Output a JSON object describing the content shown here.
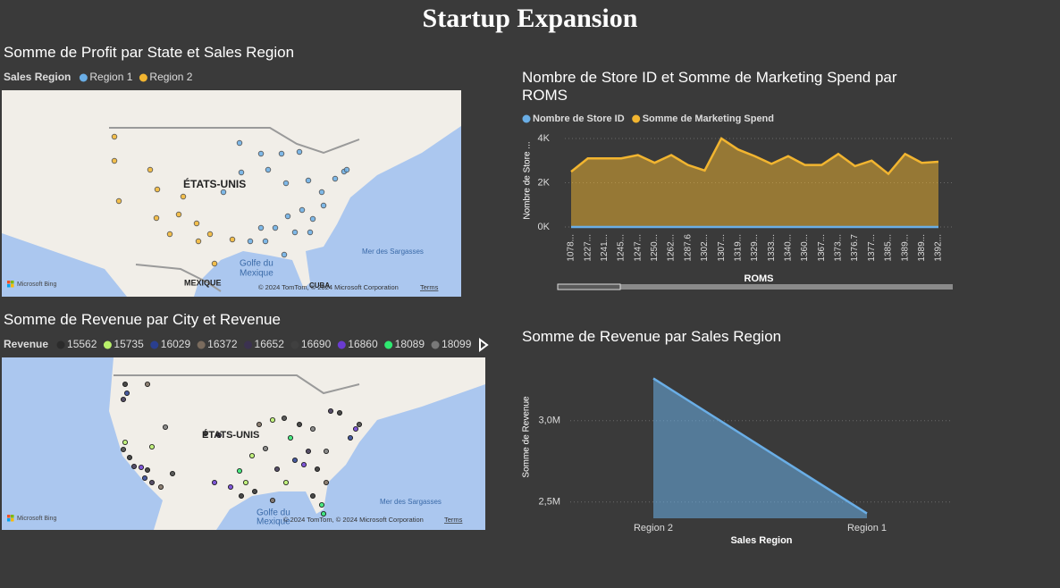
{
  "title": "Startup Expansion",
  "maps": [
    {
      "title": "Somme de Profit par State et Sales Region",
      "legend_title": "Sales Region",
      "legend": [
        {
          "name": "Region 1",
          "color": "#6aaee6"
        },
        {
          "name": "Region 2",
          "color": "#f2b530"
        }
      ],
      "labels": [
        "ÉTATS-UNIS",
        "MEXIQUE",
        "Golfe du",
        "Mexique",
        "Mer des Sargasses",
        "CUBA"
      ],
      "provider": "Microsoft Bing",
      "attribution": "© 2024 TomTom, © 2024 Microsoft Corporation",
      "terms": "Terms"
    },
    {
      "title": "Somme de Revenue par City et Revenue",
      "legend_title": "Revenue",
      "legend": [
        {
          "name": "15562",
          "color": "#2b2b2b"
        },
        {
          "name": "15735",
          "color": "#b8f06a"
        },
        {
          "name": "16029",
          "color": "#2a3f8f"
        },
        {
          "name": "16372",
          "color": "#7a6b5d"
        },
        {
          "name": "16652",
          "color": "#3b3150"
        },
        {
          "name": "16690",
          "color": "#404040"
        },
        {
          "name": "16860",
          "color": "#6a3bd1"
        },
        {
          "name": "18089",
          "color": "#2ee870"
        },
        {
          "name": "18099",
          "color": "#787878"
        }
      ],
      "labels": [
        "ÉTATS-UNIS",
        "Golfe du",
        "Mexique",
        "Mer des Sargasses"
      ],
      "provider": "Microsoft Bing",
      "attribution": "© 2024 TomTom, © 2024 Microsoft Corporation",
      "terms": "Terms"
    }
  ],
  "chart_data": [
    {
      "type": "area",
      "title": "Nombre de Store ID et Somme de Marketing Spend par ROMS",
      "x_label": "ROMS",
      "y_label": "Nombre de Store ...",
      "categories": [
        "1078...",
        "1227...",
        "1241...",
        "1245...",
        "1247...",
        "1250...",
        "1262...",
        "1287.6",
        "1302...",
        "1307...",
        "1319...",
        "1329...",
        "1333...",
        "1340...",
        "1360...",
        "1367...",
        "1373...",
        "1376.7",
        "1377...",
        "1385...",
        "1389...",
        "1389...",
        "1392..."
      ],
      "series": [
        {
          "name": "Nombre de Store ID",
          "color": "#6aaee6",
          "values": [
            1,
            1,
            1,
            1,
            1,
            1,
            1,
            1,
            1,
            1,
            1,
            1,
            1,
            1,
            1,
            1,
            1,
            1,
            1,
            1,
            1,
            1,
            1
          ]
        },
        {
          "name": "Somme de Marketing Spend",
          "color": "#f2b530",
          "values": [
            2500,
            3100,
            3100,
            3100,
            3250,
            2900,
            3250,
            2800,
            2550,
            4000,
            3500,
            3200,
            2850,
            3200,
            2800,
            2800,
            3300,
            2750,
            3000,
            2400,
            3300,
            2900,
            2950
          ]
        }
      ],
      "ylim": [
        0,
        4200
      ],
      "yticks": [
        {
          "value": 0,
          "label": "0K"
        },
        {
          "value": 2000,
          "label": "2K"
        },
        {
          "value": 4000,
          "label": "4K"
        }
      ],
      "grid": true
    },
    {
      "type": "area",
      "title": "Somme de Revenue par Sales Region",
      "x_label": "Sales Region",
      "y_label": "Somme de Revenue",
      "categories": [
        "Region 2",
        "Region 1"
      ],
      "series": [
        {
          "name": "Somme de Revenue",
          "color": "#6aaee6",
          "values": [
            3260000,
            2430000
          ]
        }
      ],
      "ylim": [
        2400000,
        3400000
      ],
      "yticks": [
        {
          "value": 2500000,
          "label": "2,5M"
        },
        {
          "value": 3000000,
          "label": "3,0M"
        }
      ],
      "grid": true
    }
  ]
}
